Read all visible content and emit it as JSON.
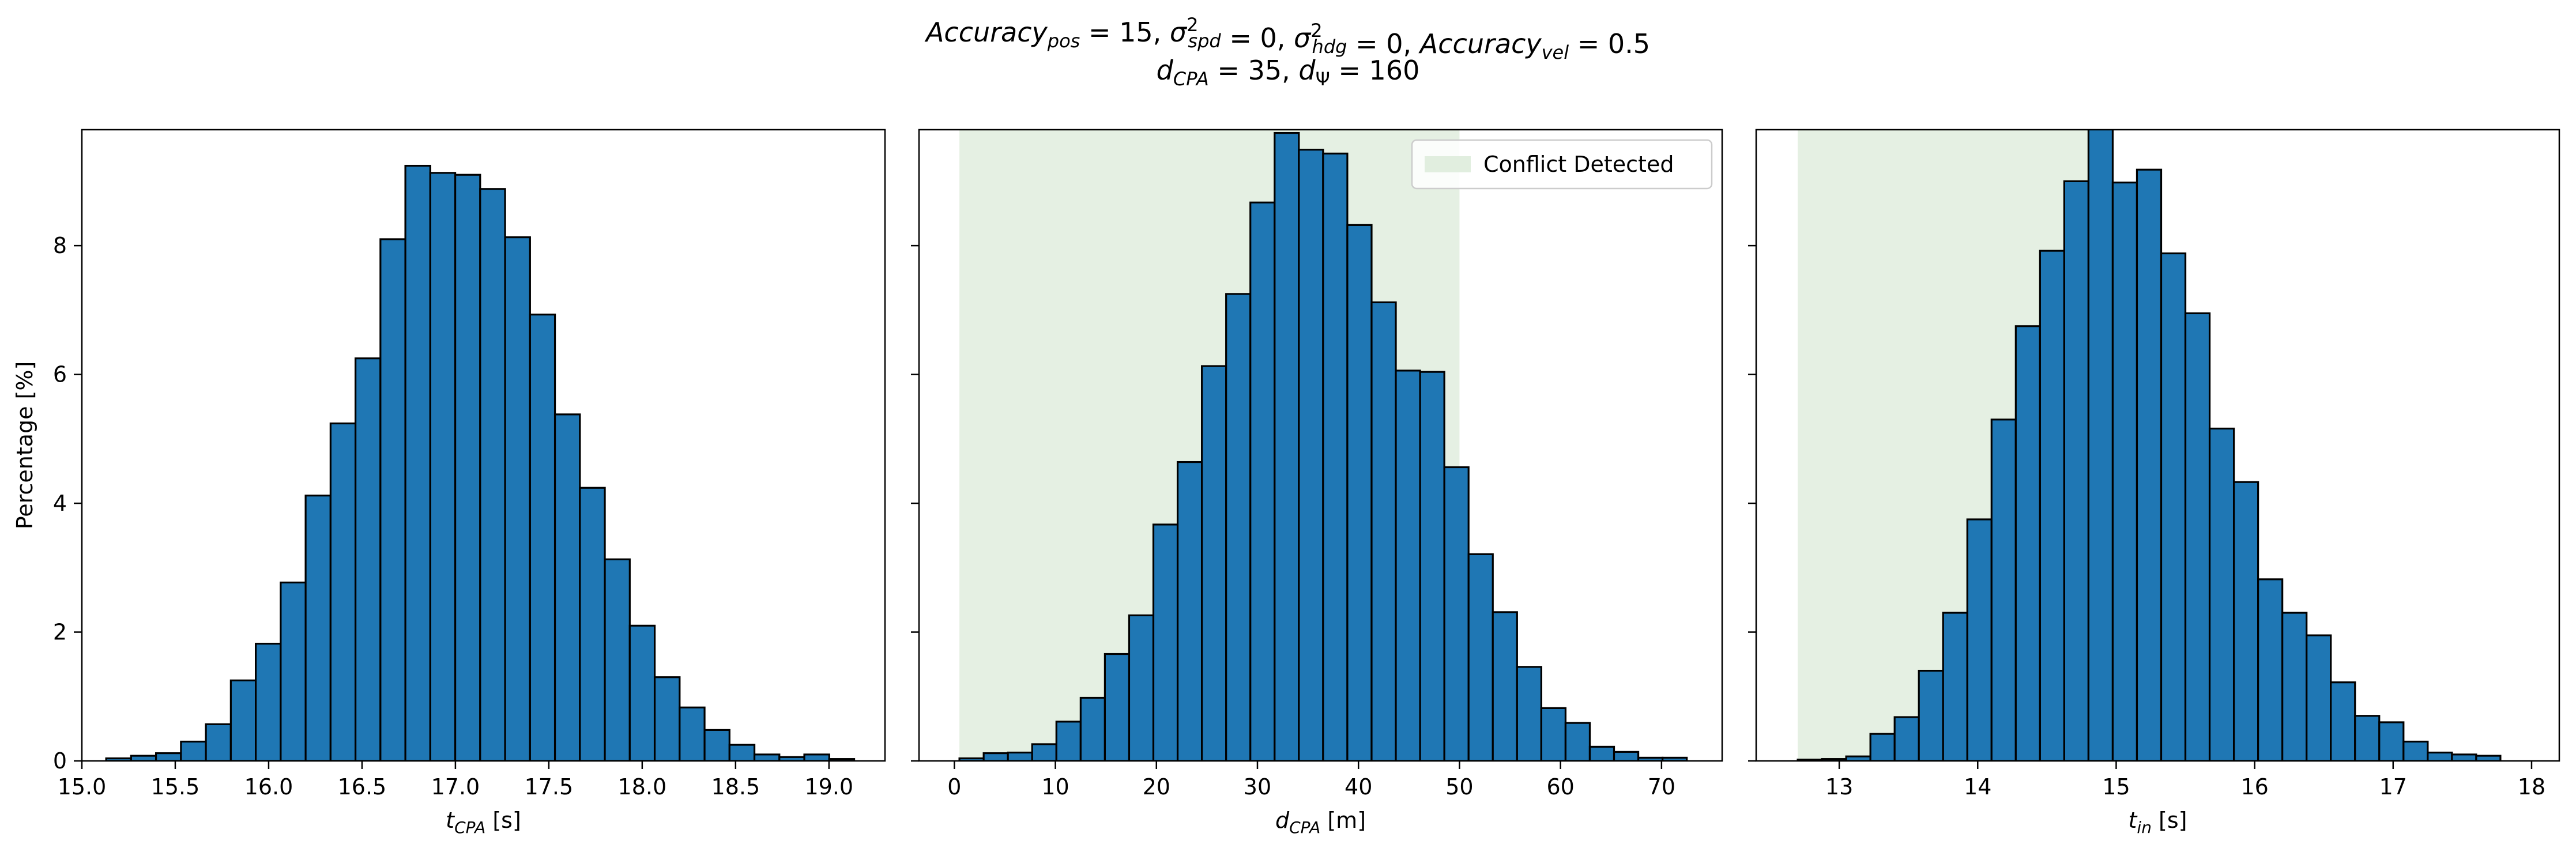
{
  "colors": {
    "bar_fill": "#1f77b4",
    "bar_edge": "#000000",
    "conflict_fill": "#dcebd9"
  },
  "title": {
    "line1": "Accuracy_pos = 15, σ²_spd = 0, σ²_hdg = 0, Accuracy_vel = 0.5",
    "line2": "d_CPA = 35, d_Ψ = 160"
  },
  "chart_data": [
    {
      "type": "bar",
      "xlabel": "t_CPA [s]",
      "ylabel": "Percentage [%]",
      "xlim": [
        15.0,
        19.3
      ],
      "ylim": [
        0,
        9.8
      ],
      "xticks": [
        15.0,
        15.5,
        16.0,
        16.5,
        17.0,
        17.5,
        18.0,
        18.5,
        19.0
      ],
      "xtick_labels": [
        "15.0",
        "15.5",
        "16.0",
        "16.5",
        "17.0",
        "17.5",
        "18.0",
        "18.5",
        "19.0"
      ],
      "yticks": [
        0,
        2,
        4,
        6,
        8
      ],
      "ytick_labels": [
        "0",
        "2",
        "4",
        "6",
        "8"
      ],
      "bin_start": 15.13,
      "bin_width": 0.1335,
      "values": [
        0.04,
        0.08,
        0.12,
        0.3,
        0.57,
        1.25,
        1.82,
        2.77,
        4.12,
        5.24,
        6.25,
        8.1,
        9.24,
        9.13,
        9.1,
        8.88,
        8.13,
        6.93,
        5.38,
        4.24,
        3.13,
        2.1,
        1.3,
        0.83,
        0.48,
        0.25,
        0.1,
        0.06,
        0.1,
        0.03
      ]
    },
    {
      "type": "bar",
      "xlabel": "d_CPA [m]",
      "xlim": [
        -3.5,
        76
      ],
      "ylim": [
        0,
        9.8
      ],
      "xticks": [
        0,
        10,
        20,
        30,
        40,
        50,
        60,
        70
      ],
      "xtick_labels": [
        "0",
        "10",
        "20",
        "30",
        "40",
        "50",
        "60",
        "70"
      ],
      "yticks": [
        0,
        2,
        4,
        6,
        8
      ],
      "bin_start": 0.5,
      "bin_width": 2.4,
      "values": [
        0.04,
        0.12,
        0.13,
        0.26,
        0.61,
        0.98,
        1.66,
        2.26,
        3.67,
        4.64,
        6.13,
        7.25,
        8.67,
        9.75,
        9.49,
        9.43,
        8.32,
        7.12,
        6.06,
        6.04,
        4.56,
        3.21,
        2.31,
        1.46,
        0.82,
        0.59,
        0.22,
        0.14,
        0.05,
        0.05
      ],
      "shaded_region": {
        "x0": 0.5,
        "x1": 50,
        "label": "Conflict Detected"
      },
      "legend_position": "upper right"
    },
    {
      "type": "bar",
      "xlabel": "t_in [s]",
      "xlim": [
        12.4,
        18.2
      ],
      "ylim": [
        0,
        9.8
      ],
      "xticks": [
        13,
        14,
        15,
        16,
        17,
        18
      ],
      "xtick_labels": [
        "13",
        "14",
        "15",
        "16",
        "17",
        "18"
      ],
      "yticks": [
        0,
        2,
        4,
        6,
        8
      ],
      "bin_start": 12.7,
      "bin_width": 0.175,
      "values": [
        0.02,
        0.03,
        0.07,
        0.42,
        0.68,
        1.4,
        2.3,
        3.75,
        5.3,
        6.75,
        7.92,
        9.0,
        9.82,
        8.98,
        9.18,
        7.88,
        6.95,
        5.16,
        4.33,
        2.82,
        2.3,
        1.95,
        1.22,
        0.7,
        0.6,
        0.3,
        0.13,
        0.1,
        0.08,
        0.0
      ],
      "shaded_region": {
        "x0": 12.7,
        "x1": 14.9
      }
    }
  ]
}
